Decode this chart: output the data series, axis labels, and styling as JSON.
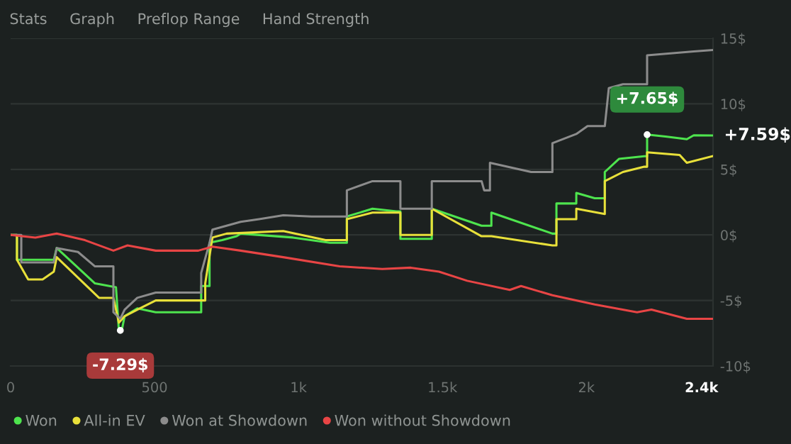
{
  "chart_data": {
    "type": "line",
    "xlim": [
      0,
      2440
    ],
    "xticks": [
      0,
      500,
      {
        "value": 1000,
        "label": "1k"
      },
      {
        "value": 1500,
        "label": "1.5k"
      },
      {
        "value": 2000,
        "label": "2k"
      },
      {
        "value": 2400,
        "label": "2.4k"
      }
    ],
    "ylim": [
      -10,
      15
    ],
    "yticks": [
      {
        "value": -10,
        "label": "-10$"
      },
      {
        "value": -5,
        "label": "-5$"
      },
      {
        "value": 0,
        "label": "0$"
      },
      {
        "value": 5,
        "label": "5$"
      },
      {
        "value": 10,
        "label": "10$"
      },
      {
        "value": 15,
        "label": "15$"
      }
    ],
    "grid": "y",
    "legend": "bottom",
    "marker": "none",
    "line_style": "solid",
    "series": [
      {
        "name": "Won",
        "color": "#4ee44e",
        "x": [
          0,
          22,
          22,
          150,
          160,
          293,
          366,
          376,
          386,
          396,
          440,
          504,
          662,
          662,
          691,
          691,
          735,
          785,
          799,
          981,
          1109,
          1168,
          1168,
          1257,
          1340,
          1354,
          1354,
          1463,
          1463,
          1636,
          1670,
          1670,
          1882,
          1896,
          1896,
          1965,
          1965,
          2029,
          2064,
          2064,
          2113,
          2201,
          2211,
          2211,
          2275,
          2349,
          2373,
          2437
        ],
        "values": [
          0,
          0,
          -1.9,
          -1.9,
          -1.0,
          -3.7,
          -4.0,
          -7.29,
          -7.29,
          -6.2,
          -5.6,
          -5.9,
          -5.9,
          -3.9,
          -3.9,
          -0.6,
          -0.4,
          -0.1,
          0.1,
          -0.2,
          -0.6,
          -0.6,
          1.4,
          2.0,
          1.8,
          1.8,
          -0.3,
          -0.3,
          2.0,
          0.7,
          0.7,
          1.7,
          0.1,
          0.1,
          2.4,
          2.4,
          3.2,
          2.8,
          2.8,
          4.8,
          5.8,
          6.0,
          6.0,
          7.65,
          7.5,
          7.3,
          7.6,
          7.59
        ]
      },
      {
        "name": "All-in EV",
        "color": "#e8e03a",
        "x": [
          0,
          22,
          22,
          61,
          111,
          150,
          160,
          307,
          357,
          376,
          396,
          440,
          504,
          676,
          676,
          701,
          750,
          947,
          1094,
          1168,
          1168,
          1257,
          1354,
          1354,
          1463,
          1463,
          1636,
          1670,
          1882,
          1896,
          1896,
          1965,
          1965,
          2064,
          2064,
          2127,
          2201,
          2211,
          2211,
          2324,
          2349,
          2437
        ],
        "values": [
          0,
          0,
          -1.9,
          -3.4,
          -3.4,
          -2.8,
          -1.7,
          -4.8,
          -4.8,
          -6.7,
          -6.2,
          -5.7,
          -5.0,
          -5.0,
          -3.7,
          -0.2,
          0.1,
          0.3,
          -0.4,
          -0.4,
          1.2,
          1.7,
          1.7,
          0,
          0,
          2.0,
          -0.1,
          -0.1,
          -0.8,
          -0.8,
          1.2,
          1.2,
          2.0,
          1.6,
          4.1,
          4.8,
          5.2,
          5.2,
          6.3,
          6.1,
          5.5,
          6.0
        ]
      },
      {
        "name": "Won at Showdown",
        "color": "#8c8c8c",
        "x": [
          0,
          37,
          37,
          150,
          160,
          234,
          293,
          357,
          357,
          381,
          396,
          440,
          504,
          662,
          662,
          691,
          701,
          799,
          863,
          947,
          1045,
          1168,
          1168,
          1257,
          1354,
          1354,
          1463,
          1463,
          1636,
          1645,
          1665,
          1665,
          1808,
          1882,
          1882,
          1965,
          2004,
          2064,
          2078,
          2127,
          2211,
          2211,
          2373,
          2437
        ],
        "values": [
          0,
          0,
          -2.1,
          -2.1,
          -1.0,
          -1.3,
          -2.4,
          -2.4,
          -5.9,
          -6.4,
          -5.7,
          -4.8,
          -4.4,
          -4.4,
          -2.9,
          -0.6,
          0.4,
          1.0,
          1.2,
          1.5,
          1.4,
          1.4,
          3.4,
          4.1,
          4.1,
          2.0,
          2.0,
          4.1,
          4.1,
          3.4,
          3.4,
          5.5,
          4.8,
          4.8,
          7.0,
          7.7,
          8.3,
          8.3,
          11.2,
          11.5,
          11.5,
          13.7,
          14.0,
          14.1
        ]
      },
      {
        "name": "Won without Showdown",
        "color": "#e84545",
        "x": [
          0,
          86,
          160,
          258,
          357,
          406,
          504,
          652,
          701,
          799,
          947,
          1143,
          1291,
          1390,
          1488,
          1586,
          1734,
          1773,
          1882,
          2029,
          2176,
          2226,
          2349,
          2437
        ],
        "values": [
          0,
          -0.2,
          0.1,
          -0.4,
          -1.2,
          -0.8,
          -1.2,
          -1.2,
          -0.9,
          -1.2,
          -1.7,
          -2.4,
          -2.6,
          -2.5,
          -2.8,
          -3.5,
          -4.2,
          -3.9,
          -4.6,
          -5.3,
          -5.9,
          -5.7,
          -6.4,
          -6.4
        ]
      }
    ],
    "annotations": [
      "Stats",
      "Graph",
      "Preflop Range",
      "Hand Strength",
      {
        "text": "-7.29$",
        "x": 381,
        "y": -7.29
      },
      {
        "text": "+7.65$",
        "x": 2211,
        "y": 7.65
      },
      {
        "text": "+7.59$",
        "x": 2437,
        "y": 7.59
      }
    ]
  }
}
